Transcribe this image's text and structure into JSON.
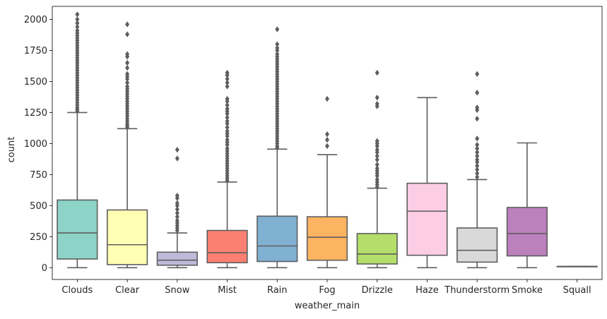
{
  "chart_data": {
    "type": "box",
    "xlabel": "weather_main",
    "ylabel": "count",
    "ylim": [
      -95,
      2105
    ],
    "yticks": [
      0,
      250,
      500,
      750,
      1000,
      1250,
      1500,
      1750,
      2000
    ],
    "categories": [
      "Clouds",
      "Clear",
      "Snow",
      "Mist",
      "Rain",
      "Fog",
      "Drizzle",
      "Haze",
      "Thunderstorm",
      "Smoke",
      "Squall"
    ],
    "colors": [
      "#8dd3c7",
      "#ffffb3",
      "#bebada",
      "#fb8072",
      "#80b1d3",
      "#fdb462",
      "#b3de69",
      "#fccde5",
      "#d9d9d9",
      "#bc80bd",
      "#ccebc5"
    ],
    "boxes": [
      {
        "category": "Clouds",
        "whisker_low": 0,
        "q1": 70,
        "median": 280,
        "q3": 545,
        "whisker_high": 1250,
        "outliers": [
          1260,
          1275,
          1290,
          1310,
          1330,
          1350,
          1370,
          1390,
          1410,
          1430,
          1450,
          1470,
          1490,
          1510,
          1530,
          1550,
          1570,
          1590,
          1610,
          1630,
          1650,
          1670,
          1690,
          1710,
          1730,
          1750,
          1770,
          1790,
          1810,
          1830,
          1850,
          1870,
          1890,
          1910,
          1940,
          1970,
          2000,
          2040
        ]
      },
      {
        "category": "Clear",
        "whisker_low": 0,
        "q1": 25,
        "median": 185,
        "q3": 465,
        "whisker_high": 1120,
        "outliers": [
          1130,
          1145,
          1160,
          1180,
          1200,
          1220,
          1240,
          1260,
          1280,
          1300,
          1320,
          1340,
          1360,
          1380,
          1400,
          1420,
          1440,
          1460,
          1490,
          1520,
          1540,
          1560,
          1610,
          1650,
          1700,
          1720,
          1880,
          1960
        ]
      },
      {
        "category": "Snow",
        "whisker_low": 0,
        "q1": 20,
        "median": 60,
        "q3": 125,
        "whisker_high": 280,
        "outliers": [
          300,
          320,
          340,
          360,
          380,
          410,
          440,
          470,
          500,
          520,
          560,
          580,
          880,
          950
        ]
      },
      {
        "category": "Mist",
        "whisker_low": 0,
        "q1": 40,
        "median": 120,
        "q3": 300,
        "whisker_high": 690,
        "outliers": [
          700,
          720,
          740,
          760,
          780,
          800,
          820,
          840,
          860,
          880,
          900,
          920,
          940,
          960,
          990,
          1010,
          1030,
          1060,
          1080,
          1100,
          1130,
          1160,
          1180,
          1210,
          1240,
          1260,
          1280,
          1310,
          1340,
          1360,
          1460,
          1490,
          1520,
          1550,
          1570
        ]
      },
      {
        "category": "Rain",
        "whisker_low": 0,
        "q1": 50,
        "median": 175,
        "q3": 415,
        "whisker_high": 955,
        "outliers": [
          965,
          980,
          1000,
          1020,
          1040,
          1060,
          1080,
          1100,
          1120,
          1140,
          1160,
          1180,
          1200,
          1220,
          1240,
          1260,
          1280,
          1300,
          1320,
          1340,
          1360,
          1380,
          1400,
          1420,
          1440,
          1460,
          1480,
          1500,
          1520,
          1540,
          1560,
          1580,
          1600,
          1620,
          1640,
          1660,
          1680,
          1700,
          1720,
          1750,
          1770,
          1800,
          1920
        ]
      },
      {
        "category": "Fog",
        "whisker_low": 0,
        "q1": 60,
        "median": 245,
        "q3": 410,
        "whisker_high": 910,
        "outliers": [
          980,
          1030,
          1075,
          1360
        ]
      },
      {
        "category": "Drizzle",
        "whisker_low": 0,
        "q1": 30,
        "median": 110,
        "q3": 275,
        "whisker_high": 640,
        "outliers": [
          650,
          670,
          690,
          710,
          740,
          760,
          780,
          800,
          830,
          870,
          900,
          930,
          950,
          980,
          1000,
          1020,
          1300,
          1320,
          1370,
          1570
        ]
      },
      {
        "category": "Haze",
        "whisker_low": 0,
        "q1": 100,
        "median": 455,
        "q3": 680,
        "whisker_high": 1370,
        "outliers": []
      },
      {
        "category": "Thunderstorm",
        "whisker_low": 0,
        "q1": 45,
        "median": 140,
        "q3": 320,
        "whisker_high": 710,
        "outliers": [
          730,
          760,
          790,
          820,
          850,
          870,
          900,
          930,
          960,
          990,
          1040,
          1200,
          1270,
          1290,
          1410,
          1560
        ]
      },
      {
        "category": "Smoke",
        "whisker_low": 0,
        "q1": 95,
        "median": 275,
        "q3": 485,
        "whisker_high": 1005,
        "outliers": []
      },
      {
        "category": "Squall",
        "whisker_low": 10,
        "q1": 10,
        "median": 10,
        "q3": 10,
        "whisker_high": 10,
        "outliers": []
      }
    ]
  }
}
